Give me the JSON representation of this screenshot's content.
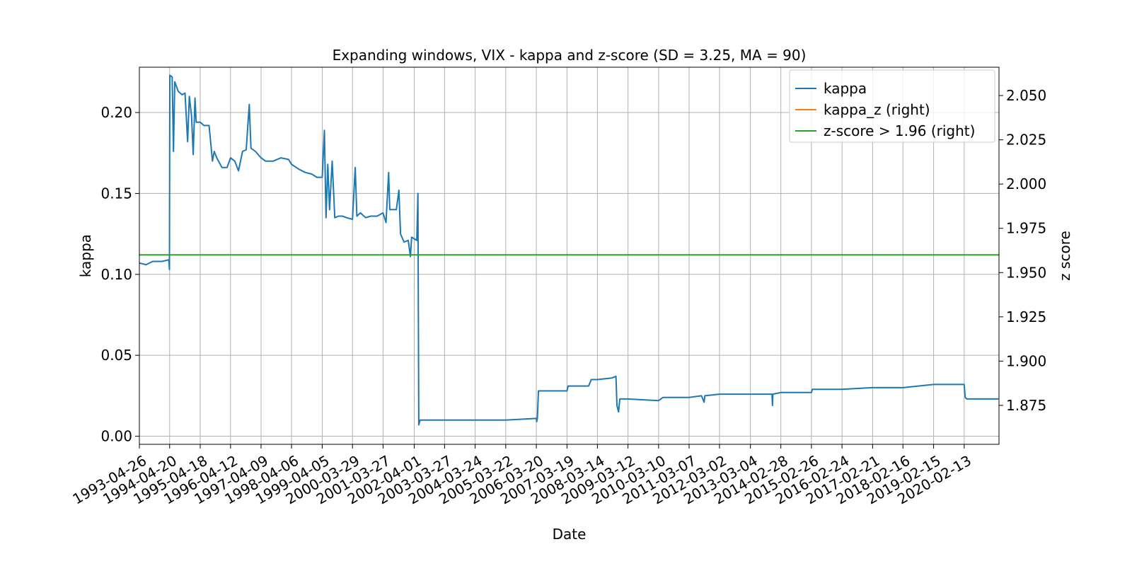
{
  "chart_data": {
    "type": "line",
    "title": "Expanding windows, VIX - kappa and z-score (SD = 3.25, MA = 90)",
    "xlabel": "Date",
    "ylabel": "kappa",
    "y2label": "z score",
    "x_tick_labels": [
      "1993-04-26",
      "1994-04-20",
      "1995-04-18",
      "1996-04-12",
      "1997-04-09",
      "1998-04-06",
      "1999-04-05",
      "2000-03-29",
      "2001-03-27",
      "2002-04-01",
      "2003-03-27",
      "2004-03-24",
      "2005-03-22",
      "2006-03-20",
      "2007-03-19",
      "2008-03-14",
      "2009-03-12",
      "2010-03-10",
      "2011-03-07",
      "2012-03-02",
      "2013-03-04",
      "2014-02-28",
      "2015-02-26",
      "2016-02-24",
      "2017-02-21",
      "2018-02-16",
      "2019-02-15",
      "2020-02-13"
    ],
    "xlim": [
      "1993-04-26",
      "2021-04-01"
    ],
    "y_ticks": [
      0.0,
      0.05,
      0.1,
      0.15,
      0.2
    ],
    "y_tick_labels": [
      "0.00",
      "0.05",
      "0.10",
      "0.15",
      "0.20"
    ],
    "ylim": [
      -0.005,
      0.228
    ],
    "y2_ticks": [
      1.875,
      1.9,
      1.925,
      1.95,
      1.975,
      2.0,
      2.025,
      2.05
    ],
    "y2_tick_labels": [
      "1.875",
      "1.900",
      "1.925",
      "1.950",
      "1.975",
      "2.000",
      "2.025",
      "2.050"
    ],
    "y2lim": [
      1.853,
      2.066
    ],
    "grid": true,
    "legend_position": "top-right",
    "series": [
      {
        "name": "kappa",
        "axis": "left",
        "color": "#1f77b4",
        "points": [
          [
            "1993-04-26",
            0.107
          ],
          [
            "1993-07-15",
            0.106
          ],
          [
            "1993-10-01",
            0.108
          ],
          [
            "1994-01-20",
            0.108
          ],
          [
            "1994-04-10",
            0.109
          ],
          [
            "1994-04-18",
            0.103
          ],
          [
            "1994-04-22",
            0.223
          ],
          [
            "1994-05-20",
            0.222
          ],
          [
            "1994-06-05",
            0.176
          ],
          [
            "1994-06-20",
            0.219
          ],
          [
            "1994-08-01",
            0.213
          ],
          [
            "1994-09-15",
            0.211
          ],
          [
            "1994-10-20",
            0.212
          ],
          [
            "1994-11-20",
            0.182
          ],
          [
            "1994-12-10",
            0.21
          ],
          [
            "1995-01-05",
            0.198
          ],
          [
            "1995-01-25",
            0.174
          ],
          [
            "1995-02-15",
            0.209
          ],
          [
            "1995-03-01",
            0.194
          ],
          [
            "1995-04-18",
            0.194
          ],
          [
            "1995-06-01",
            0.192
          ],
          [
            "1995-08-01",
            0.192
          ],
          [
            "1995-09-10",
            0.17
          ],
          [
            "1995-10-01",
            0.176
          ],
          [
            "1995-11-01",
            0.172
          ],
          [
            "1996-01-01",
            0.166
          ],
          [
            "1996-03-01",
            0.166
          ],
          [
            "1996-04-12",
            0.172
          ],
          [
            "1996-06-01",
            0.17
          ],
          [
            "1996-07-15",
            0.164
          ],
          [
            "1996-09-01",
            0.176
          ],
          [
            "1996-10-15",
            0.177
          ],
          [
            "1996-11-20",
            0.205
          ],
          [
            "1996-12-10",
            0.178
          ],
          [
            "1997-02-01",
            0.176
          ],
          [
            "1997-04-09",
            0.172
          ],
          [
            "1997-06-01",
            0.17
          ],
          [
            "1997-09-01",
            0.17
          ],
          [
            "1997-12-01",
            0.172
          ],
          [
            "1998-03-01",
            0.171
          ],
          [
            "1998-04-06",
            0.168
          ],
          [
            "1998-07-01",
            0.165
          ],
          [
            "1998-09-15",
            0.163
          ],
          [
            "1998-12-01",
            0.162
          ],
          [
            "1999-02-01",
            0.16
          ],
          [
            "1999-04-05",
            0.16
          ],
          [
            "1999-05-01",
            0.189
          ],
          [
            "1999-05-20",
            0.135
          ],
          [
            "1999-06-10",
            0.168
          ],
          [
            "1999-07-01",
            0.14
          ],
          [
            "1999-08-01",
            0.17
          ],
          [
            "1999-09-01",
            0.135
          ],
          [
            "1999-10-15",
            0.136
          ],
          [
            "1999-12-01",
            0.136
          ],
          [
            "2000-01-20",
            0.135
          ],
          [
            "2000-03-29",
            0.134
          ],
          [
            "2000-05-01",
            0.166
          ],
          [
            "2000-05-20",
            0.136
          ],
          [
            "2000-07-01",
            0.138
          ],
          [
            "2000-09-01",
            0.135
          ],
          [
            "2000-11-01",
            0.136
          ],
          [
            "2001-01-15",
            0.136
          ],
          [
            "2001-03-27",
            0.138
          ],
          [
            "2001-05-01",
            0.132
          ],
          [
            "2001-06-01",
            0.163
          ],
          [
            "2001-06-15",
            0.14
          ],
          [
            "2001-09-01",
            0.14
          ],
          [
            "2001-10-01",
            0.152
          ],
          [
            "2001-10-20",
            0.125
          ],
          [
            "2001-12-01",
            0.12
          ],
          [
            "2002-01-20",
            0.121
          ],
          [
            "2002-02-15",
            0.111
          ],
          [
            "2002-03-01",
            0.123
          ],
          [
            "2002-04-01",
            0.122
          ],
          [
            "2002-05-01",
            0.121
          ],
          [
            "2002-05-15",
            0.15
          ],
          [
            "2002-05-25",
            0.007
          ],
          [
            "2002-06-10",
            0.01
          ],
          [
            "2003-03-27",
            0.01
          ],
          [
            "2004-03-24",
            0.01
          ],
          [
            "2005-03-22",
            0.01
          ],
          [
            "2006-03-20",
            0.011
          ],
          [
            "2006-03-25",
            0.009
          ],
          [
            "2006-04-01",
            0.011
          ],
          [
            "2006-04-15",
            0.028
          ],
          [
            "2007-03-19",
            0.028
          ],
          [
            "2007-04-01",
            0.031
          ],
          [
            "2007-12-01",
            0.031
          ],
          [
            "2008-01-01",
            0.035
          ],
          [
            "2008-03-14",
            0.035
          ],
          [
            "2008-09-01",
            0.036
          ],
          [
            "2008-10-20",
            0.037
          ],
          [
            "2008-11-01",
            0.019
          ],
          [
            "2008-11-20",
            0.015
          ],
          [
            "2008-12-05",
            0.023
          ],
          [
            "2009-03-12",
            0.023
          ],
          [
            "2010-03-10",
            0.022
          ],
          [
            "2010-05-01",
            0.024
          ],
          [
            "2011-03-07",
            0.024
          ],
          [
            "2011-08-01",
            0.025
          ],
          [
            "2011-09-01",
            0.021
          ],
          [
            "2011-09-10",
            0.025
          ],
          [
            "2012-03-02",
            0.026
          ],
          [
            "2013-03-04",
            0.026
          ],
          [
            "2013-11-15",
            0.026
          ],
          [
            "2013-11-20",
            0.019
          ],
          [
            "2013-11-25",
            0.026
          ],
          [
            "2014-02-28",
            0.027
          ],
          [
            "2015-02-26",
            0.027
          ],
          [
            "2015-03-10",
            0.029
          ],
          [
            "2016-02-24",
            0.029
          ],
          [
            "2017-02-21",
            0.03
          ],
          [
            "2018-02-16",
            0.03
          ],
          [
            "2018-02-20",
            0.03
          ],
          [
            "2019-02-15",
            0.032
          ],
          [
            "2020-01-01",
            0.032
          ],
          [
            "2020-02-13",
            0.032
          ],
          [
            "2020-02-25",
            0.024
          ],
          [
            "2020-03-15",
            0.023
          ],
          [
            "2021-03-25",
            0.023
          ]
        ]
      },
      {
        "name": "kappa_z (right)",
        "axis": "right",
        "color": "#ff7f0e",
        "points": []
      },
      {
        "name": "z-score > 1.96 (right)",
        "axis": "right",
        "color": "#2ca02c",
        "points": [
          [
            "1993-04-26",
            1.96
          ],
          [
            "2021-04-01",
            1.96
          ]
        ]
      }
    ]
  }
}
